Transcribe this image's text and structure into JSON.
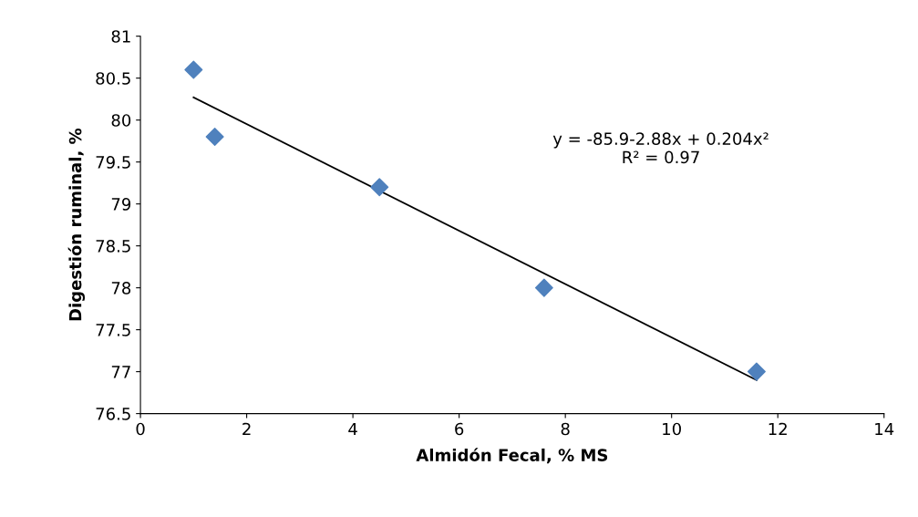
{
  "chart_data": {
    "type": "scatter",
    "xlabel": "Almidón Fecal, % MS",
    "ylabel": "Digestión ruminal, %",
    "series": [
      {
        "color": "#4f81bd",
        "marker": "diamond",
        "x": [
          1.0,
          1.4,
          4.5,
          7.6,
          11.6
        ],
        "values": [
          80.6,
          79.8,
          79.2,
          78.0,
          77.0
        ]
      },
      {
        "type": "line",
        "color": "#000000",
        "marker": "none",
        "line_style": "solid",
        "x": [
          1.0,
          11.6
        ],
        "values": [
          80.27,
          76.9
        ]
      }
    ],
    "annotations": [
      "y = -85.9-2.88x + 0.204x²\nR² = 0.97"
    ],
    "xlim": [
      0,
      14
    ],
    "xticks": [
      0,
      2,
      4,
      6,
      8,
      10,
      12,
      14
    ],
    "ylim": [
      76.5,
      81
    ],
    "yticks": [
      76.5,
      77,
      77.5,
      78,
      78.5,
      79,
      79.5,
      80,
      80.5,
      81
    ],
    "grid": false,
    "legend": false
  }
}
